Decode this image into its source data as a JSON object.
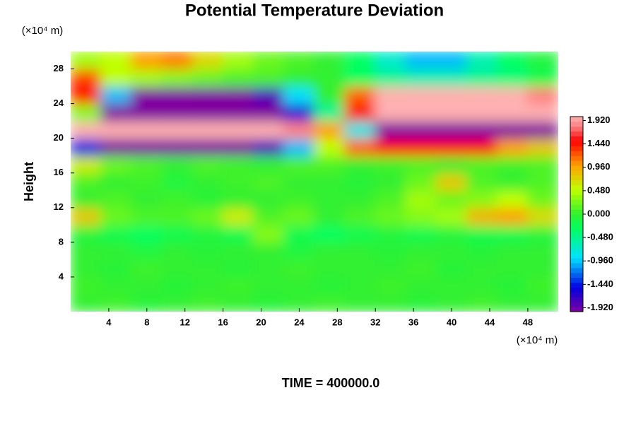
{
  "chart_data": {
    "type": "heatmap",
    "title": "Potential Temperature Deviation",
    "ylabel": "Height",
    "xunit": "(×10⁴ m)",
    "yunit": "(×10⁴ m)",
    "footer": "TIME = 400000.0",
    "xlim": [
      0,
      51.2
    ],
    "ylim": [
      0,
      30
    ],
    "xticks": [
      4,
      8,
      12,
      16,
      20,
      24,
      28,
      32,
      36,
      40,
      44,
      48
    ],
    "yticks": [
      4,
      8,
      12,
      16,
      20,
      24,
      28
    ],
    "x_bins": [
      0,
      3.2,
      6.4,
      9.6,
      12.8,
      16,
      19.2,
      22.4,
      25.6,
      28.8,
      32,
      35.2,
      38.4,
      41.6,
      44.8,
      48,
      51.2
    ],
    "y_bins": [
      0,
      2,
      4,
      6,
      8,
      10,
      12,
      14,
      16,
      18,
      20,
      22,
      24,
      26,
      28,
      30
    ],
    "z": [
      [
        0,
        0.05,
        -0.05,
        0,
        0.05,
        0,
        -0.05,
        0,
        0.05,
        0,
        0,
        -0.05,
        0,
        0.05,
        0,
        0
      ],
      [
        0.05,
        0,
        0,
        -0.05,
        0,
        0.05,
        0,
        0,
        -0.05,
        0,
        0.05,
        0,
        0,
        0,
        -0.05,
        0.05
      ],
      [
        0,
        -0.05,
        0.05,
        0,
        0,
        -0.05,
        0,
        0.05,
        0,
        0,
        0,
        0.05,
        -0.05,
        0,
        0,
        0
      ],
      [
        0,
        0,
        -0.1,
        0,
        -0.05,
        0,
        0,
        -0.1,
        0,
        0,
        -0.05,
        0,
        0,
        -0.05,
        0,
        0
      ],
      [
        -0.1,
        -0.2,
        -0.3,
        -0.2,
        -0.1,
        -0.2,
        0.3,
        -0.2,
        -0.3,
        -0.2,
        -0.1,
        -0.2,
        -0.1,
        -0.2,
        -0.2,
        -0.1
      ],
      [
        0.8,
        0.2,
        0.1,
        0.1,
        0.2,
        0.6,
        0.1,
        0.2,
        0,
        0.1,
        0.2,
        0.3,
        0.4,
        0.9,
        1.0,
        0.7
      ],
      [
        0,
        0.1,
        0,
        0.05,
        -0.05,
        0,
        0,
        0.05,
        0,
        0,
        0.1,
        0.4,
        0.2,
        0.3,
        0.5,
        0.2
      ],
      [
        0.1,
        0,
        0.05,
        -0.1,
        0,
        0.05,
        0.1,
        0,
        0,
        -0.05,
        0,
        0.2,
        0.8,
        0.1,
        0,
        0.1
      ],
      [
        0.6,
        0.2,
        0.1,
        0,
        0.1,
        0.05,
        0,
        0.1,
        0.1,
        0,
        0.05,
        0.1,
        0,
        0.1,
        0.05,
        0.1
      ],
      [
        -1.5,
        -2.0,
        -2.0,
        -2.0,
        -2.0,
        -2.0,
        -1.8,
        -1.0,
        0.5,
        1.2,
        1.5,
        1.5,
        1.5,
        1.5,
        1.0,
        0.8
      ],
      [
        2.0,
        2.0,
        2.0,
        2.0,
        2.0,
        2.0,
        2.0,
        1.8,
        1.0,
        -0.8,
        -2.0,
        -2.0,
        -2.0,
        -2.0,
        -2.0,
        -2.0
      ],
      [
        0.3,
        -2.0,
        -2.0,
        -2.0,
        -2.0,
        -2.0,
        -2.0,
        -1.6,
        -0.5,
        1.5,
        2.0,
        2.0,
        2.0,
        2.0,
        2.0,
        2.0
      ],
      [
        1.5,
        -1.0,
        -2.0,
        -2.0,
        -2.0,
        -2.0,
        -1.8,
        -0.9,
        0,
        1.2,
        2.0,
        2.0,
        2.0,
        2.0,
        2.0,
        1.8
      ],
      [
        1.3,
        0.5,
        0.4,
        0.3,
        0.2,
        0.1,
        0.1,
        0,
        0,
        -0.3,
        -0.5,
        -0.6,
        -0.6,
        -0.5,
        -0.4,
        -0.2
      ],
      [
        0.4,
        0.5,
        1.0,
        1.1,
        0.7,
        0.4,
        0.2,
        0.1,
        0,
        -0.3,
        -0.7,
        -1.0,
        -1.0,
        -0.6,
        -0.3,
        -0.1
      ]
    ],
    "clim": [
      -2,
      2
    ],
    "cticks": [
      {
        "value": 1.92,
        "label": "1.920"
      },
      {
        "value": 1.44,
        "label": "1.440"
      },
      {
        "value": 0.96,
        "label": "0.960"
      },
      {
        "value": 0.48,
        "label": "0.480"
      },
      {
        "value": 0,
        "label": "0.000"
      },
      {
        "value": -0.48,
        "label": "-0.480"
      },
      {
        "value": -0.96,
        "label": "-0.960"
      },
      {
        "value": -1.44,
        "label": "-1.440"
      },
      {
        "value": -1.92,
        "label": "-1.920"
      }
    ],
    "colorscale": [
      [
        -2,
        "#8000a0"
      ],
      [
        -1.5,
        "#0000e0"
      ],
      [
        -0.9,
        "#00e0ff"
      ],
      [
        -0.3,
        "#00ff60"
      ],
      [
        0,
        "#30f030"
      ],
      [
        0.5,
        "#c0ff00"
      ],
      [
        1.0,
        "#ffa000"
      ],
      [
        1.5,
        "#ff0000"
      ],
      [
        1.8,
        "#ff8080"
      ],
      [
        2,
        "#ffb0b0"
      ]
    ]
  }
}
